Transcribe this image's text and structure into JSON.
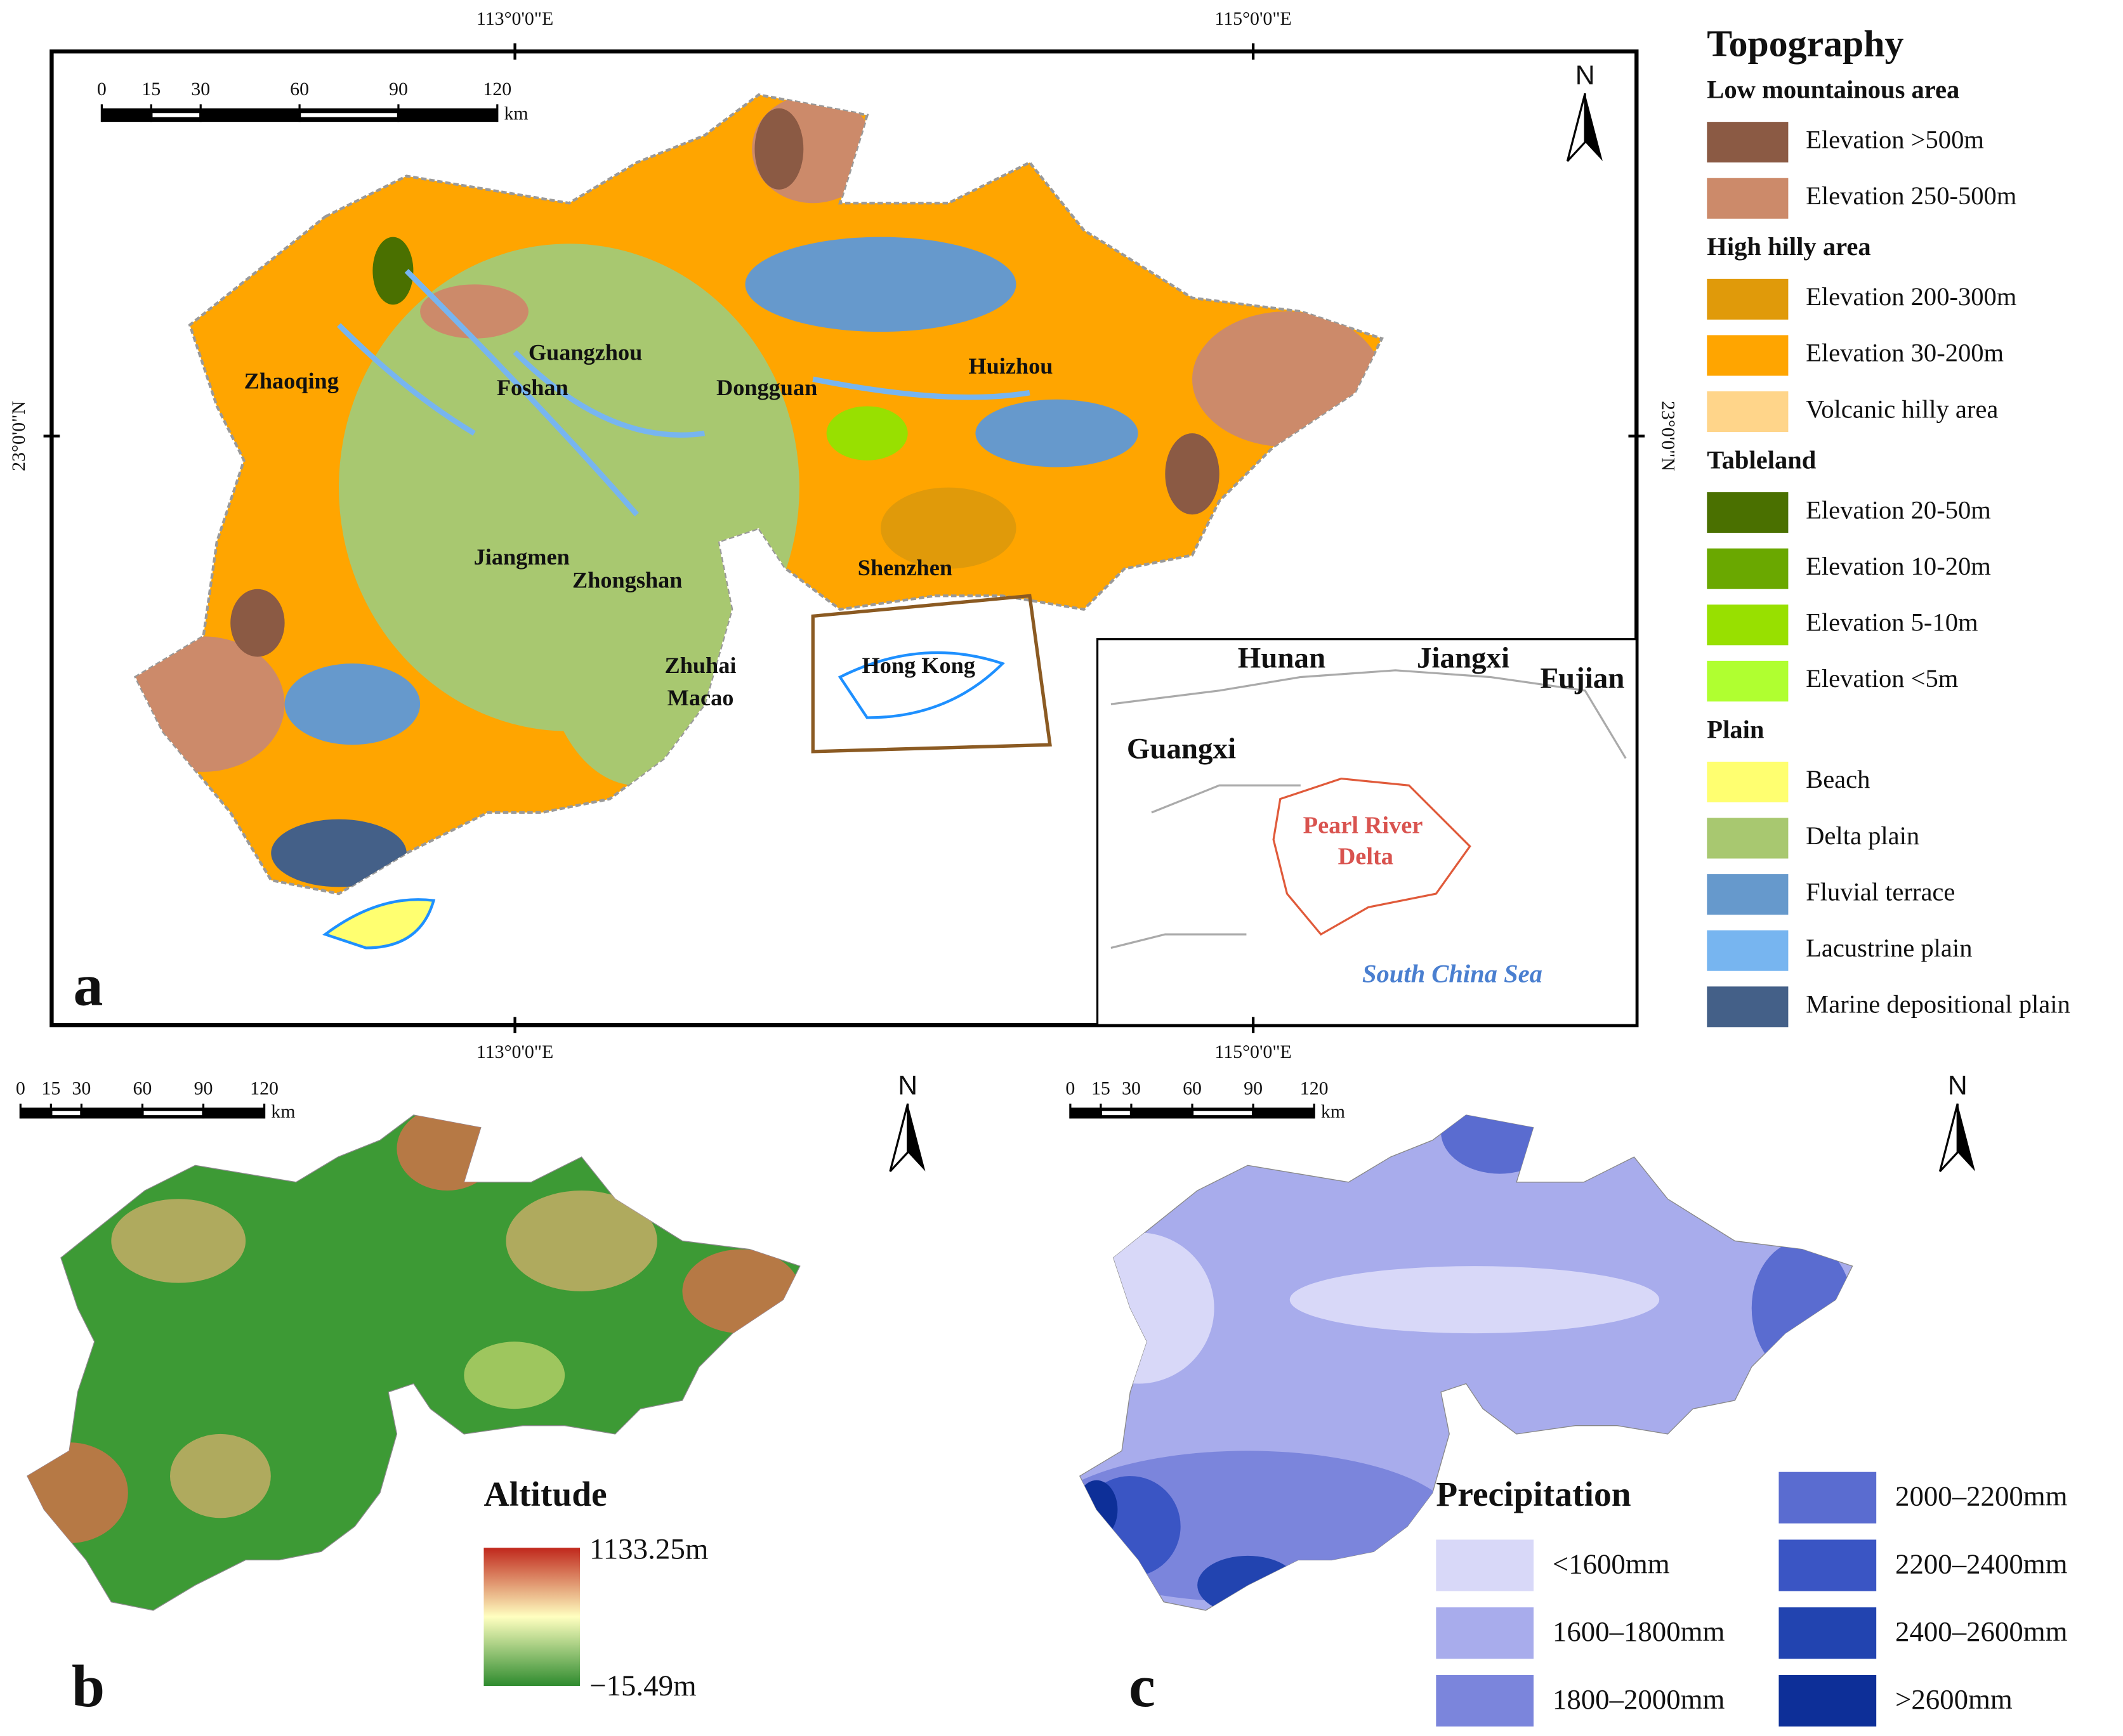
{
  "panel_a": {
    "label": "a",
    "graticule": {
      "lon": [
        "113°0'0\"E",
        "115°0'0\"E"
      ],
      "lat": [
        "23°0'0\"N"
      ]
    },
    "scale_bar": {
      "ticks": [
        0,
        15,
        30,
        60,
        90,
        120
      ],
      "unit": "km"
    },
    "north": "N",
    "cities": [
      "Zhaoqing",
      "Guangzhou",
      "Foshan",
      "Dongguan",
      "Huizhou",
      "Jiangmen",
      "Zhongshan",
      "Shenzhen",
      "Hong Kong",
      "Zhuhai",
      "Macao"
    ],
    "inset": {
      "provinces": [
        "Hunan",
        "Jiangxi",
        "Fujian",
        "Guangxi"
      ],
      "region_label": [
        "Pearl River",
        "Delta"
      ],
      "sea": "South China Sea"
    }
  },
  "legend": {
    "title": "Topography",
    "groups": [
      {
        "title": "Low mountainous area",
        "items": [
          {
            "label": "Elevation >500m",
            "color": "#8b5a44"
          },
          {
            "label": "Elevation 250-500m",
            "color": "#cc8a6a"
          }
        ]
      },
      {
        "title": "High hilly area",
        "items": [
          {
            "label": "Elevation 200-300m",
            "color": "#e09a0a"
          },
          {
            "label": "Elevation 30-200m",
            "color": "#ffa500"
          },
          {
            "label": "Volcanic hilly area",
            "color": "#ffd58a"
          }
        ]
      },
      {
        "title": "Tableland",
        "items": [
          {
            "label": "Elevation 20-50m",
            "color": "#4a7000"
          },
          {
            "label": "Elevation 10-20m",
            "color": "#6aa800"
          },
          {
            "label": "Elevation 5-10m",
            "color": "#98e000"
          },
          {
            "label": "Elevation <5m",
            "color": "#b0ff30"
          }
        ]
      },
      {
        "title": "Plain",
        "items": [
          {
            "label": "Beach",
            "color": "#ffff70"
          },
          {
            "label": "Delta plain",
            "color": "#a8c870"
          },
          {
            "label": "Fluvial terrace",
            "color": "#6699cc"
          },
          {
            "label": "Lacustrine plain",
            "color": "#77b5f0"
          },
          {
            "label": "Marine depositional plain",
            "color": "#446088"
          }
        ]
      }
    ]
  },
  "panel_b": {
    "label": "b",
    "scale_bar": {
      "ticks": [
        0,
        15,
        30,
        60,
        90,
        120
      ],
      "unit": "km"
    },
    "north": "N",
    "legend": {
      "title": "Altitude",
      "max": "1133.25m",
      "min": "−15.49m",
      "colors": [
        "#c0281c",
        "#ffffc0",
        "#2e8b2e"
      ]
    }
  },
  "panel_c": {
    "label": "c",
    "scale_bar": {
      "ticks": [
        0,
        15,
        30,
        60,
        90,
        120
      ],
      "unit": "km"
    },
    "north": "N",
    "legend": {
      "title": "Precipitation",
      "items": [
        {
          "label": "<1600mm",
          "color": "#d8d8f8"
        },
        {
          "label": "1600–1800mm",
          "color": "#a8acec"
        },
        {
          "label": "1800–2000mm",
          "color": "#7b85dc"
        },
        {
          "label": "2000–2200mm",
          "color": "#5a6cd0"
        },
        {
          "label": "2200–2400mm",
          "color": "#3a55c4"
        },
        {
          "label": "2400–2600mm",
          "color": "#2244b0"
        },
        {
          "label": ">2600mm",
          "color": "#0d2f98"
        }
      ]
    }
  }
}
